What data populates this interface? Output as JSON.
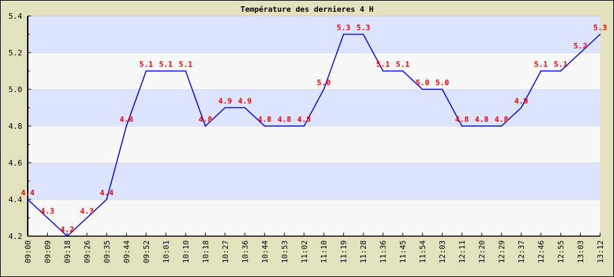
{
  "chart_data": {
    "type": "line",
    "title": "Température des dernieres 4 H",
    "xlabel": "",
    "ylabel": "",
    "ylim": [
      4.2,
      5.4
    ],
    "yticks": [
      "4.2",
      "4.4",
      "4.6",
      "4.8",
      "5.0",
      "5.2",
      "5.4"
    ],
    "grid": true,
    "x": [
      "09:00",
      "09:09",
      "09:18",
      "09:26",
      "09:35",
      "09:44",
      "09:52",
      "10:01",
      "10:10",
      "10:18",
      "10:27",
      "10:36",
      "10:44",
      "10:53",
      "11:02",
      "11:10",
      "11:19",
      "11:28",
      "11:36",
      "11:45",
      "11:54",
      "12:03",
      "12:11",
      "12:20",
      "12:29",
      "12:37",
      "12:46",
      "12:55",
      "13:03",
      "13:12"
    ],
    "values": [
      4.4,
      4.3,
      4.2,
      4.3,
      4.4,
      4.8,
      5.1,
      5.1,
      5.1,
      4.8,
      4.9,
      4.9,
      4.8,
      4.8,
      4.8,
      5.0,
      5.3,
      5.3,
      5.1,
      5.1,
      5.0,
      5.0,
      4.8,
      4.8,
      4.8,
      4.9,
      5.1,
      5.1,
      5.2,
      5.3
    ],
    "colors": {
      "line": "#0000ee",
      "labels": "#ff0000",
      "band_a": "#dde4ff",
      "band_b": "#f8f8f8",
      "background": "#e4e1bf"
    }
  }
}
